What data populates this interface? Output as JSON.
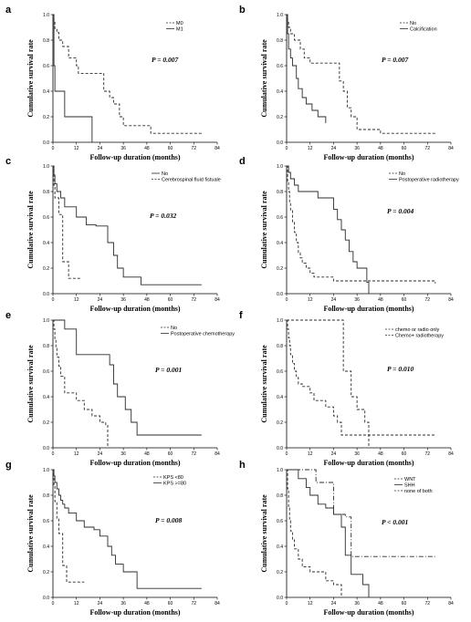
{
  "chart_data": [
    {
      "type": "line",
      "panel": "a",
      "ylabel": "Cumulative survival rate",
      "xlabel": "Follow-up duration (months)",
      "xlim": [
        0,
        84
      ],
      "ylim": [
        0,
        1.0
      ],
      "xticks": [
        "0",
        "12",
        "24",
        "36",
        "48",
        "60",
        "72",
        "84"
      ],
      "yticks": [
        "0.0",
        "0.2",
        "0.4",
        "0.6",
        "0.8",
        "1.0"
      ],
      "pvalue": "P = 0.007",
      "series": [
        {
          "name": "M0",
          "dash": "dash",
          "color": "#2b2b2b",
          "x": [
            0,
            0.5,
            1,
            2,
            3,
            5,
            8,
            12,
            13,
            24,
            26,
            29,
            31,
            34,
            36,
            50,
            76
          ],
          "y": [
            1,
            0.95,
            0.89,
            0.86,
            0.8,
            0.75,
            0.66,
            0.6,
            0.54,
            0.54,
            0.4,
            0.35,
            0.3,
            0.2,
            0.13,
            0.07,
            0.07
          ]
        },
        {
          "name": "M1",
          "dash": "solid",
          "color": "#2b2b2b",
          "x": [
            0,
            0.5,
            1,
            5,
            6,
            12,
            20
          ],
          "y": [
            1,
            0.6,
            0.4,
            0.4,
            0.2,
            0.2,
            0
          ]
        }
      ]
    },
    {
      "type": "line",
      "panel": "b",
      "ylabel": "Cumulative survival rate",
      "xlabel": "Follow-up duration (months)",
      "xlim": [
        0,
        84
      ],
      "ylim": [
        0,
        1.0
      ],
      "xticks": [
        "0",
        "12",
        "24",
        "36",
        "48",
        "60",
        "72",
        "84"
      ],
      "yticks": [
        "0.0",
        "0.2",
        "0.4",
        "0.6",
        "0.8",
        "1.0"
      ],
      "pvalue": "P = 0.007",
      "series": [
        {
          "name": "No",
          "dash": "dash",
          "color": "#2b2b2b",
          "x": [
            0,
            0.5,
            1,
            2,
            4,
            7,
            9,
            12,
            14,
            24,
            27,
            29,
            31,
            33,
            36,
            48,
            76
          ],
          "y": [
            1,
            0.95,
            0.9,
            0.85,
            0.8,
            0.73,
            0.66,
            0.62,
            0.62,
            0.62,
            0.48,
            0.4,
            0.27,
            0.2,
            0.1,
            0.07,
            0.07
          ]
        },
        {
          "name": "Calcification",
          "dash": "solid",
          "color": "#2b2b2b",
          "x": [
            0,
            0.5,
            1,
            2,
            3,
            5,
            6,
            8,
            10,
            13,
            16,
            20
          ],
          "y": [
            1,
            0.85,
            0.73,
            0.66,
            0.6,
            0.5,
            0.42,
            0.35,
            0.3,
            0.25,
            0.2,
            0.15
          ]
        }
      ]
    },
    {
      "type": "line",
      "panel": "c",
      "ylabel": "Cumulative survival rate",
      "xlabel": "Follow-up duration (months)",
      "xlim": [
        0,
        84
      ],
      "ylim": [
        0,
        1.0
      ],
      "xticks": [
        "0",
        "12",
        "24",
        "36",
        "48",
        "60",
        "72",
        "84"
      ],
      "yticks": [
        "0.0",
        "0.2",
        "0.4",
        "0.6",
        "0.8",
        "1.0"
      ],
      "pvalue": "P = 0.032",
      "series": [
        {
          "name": "No",
          "dash": "solid",
          "color": "#2b2b2b",
          "x": [
            0,
            0.5,
            1,
            2,
            4,
            6,
            12,
            17,
            22,
            28,
            31,
            33,
            36,
            45,
            76
          ],
          "y": [
            1,
            0.93,
            0.86,
            0.8,
            0.75,
            0.68,
            0.6,
            0.54,
            0.53,
            0.4,
            0.3,
            0.2,
            0.13,
            0.07,
            0.07
          ]
        },
        {
          "name": "Cerebrospinal fluid fistuale",
          "dash": "dash",
          "color": "#2b2b2b",
          "x": [
            0,
            0.5,
            1,
            3,
            5,
            8,
            14
          ],
          "y": [
            1,
            0.85,
            0.75,
            0.62,
            0.25,
            0.12,
            0.12
          ]
        }
      ]
    },
    {
      "type": "line",
      "panel": "d",
      "ylabel": "Cumulative survival rate",
      "xlabel": "Follow-up duration (months)",
      "xlim": [
        0,
        84
      ],
      "ylim": [
        0,
        1.0
      ],
      "xticks": [
        "0",
        "12",
        "24",
        "36",
        "48",
        "60",
        "72",
        "84"
      ],
      "yticks": [
        "0.0",
        "0.2",
        "0.4",
        "0.6",
        "0.8",
        "1.0"
      ],
      "pvalue": "P = 0.004",
      "series": [
        {
          "name": "No",
          "dash": "dash",
          "color": "#2b2b2b",
          "x": [
            0,
            0.5,
            1,
            1.5,
            2,
            3,
            4,
            5,
            6,
            7,
            8,
            10,
            12,
            14,
            24,
            76
          ],
          "y": [
            1,
            0.88,
            0.8,
            0.72,
            0.65,
            0.56,
            0.48,
            0.4,
            0.32,
            0.28,
            0.24,
            0.2,
            0.16,
            0.13,
            0.1,
            0.08
          ]
        },
        {
          "name": "Postoperative radiotherapy",
          "dash": "solid",
          "color": "#2b2b2b",
          "x": [
            0,
            1,
            2,
            4,
            6,
            12,
            16,
            20,
            24,
            26,
            28,
            30,
            32,
            34,
            36,
            41,
            42
          ],
          "y": [
            1,
            0.95,
            0.9,
            0.85,
            0.8,
            0.8,
            0.75,
            0.75,
            0.66,
            0.58,
            0.5,
            0.42,
            0.33,
            0.25,
            0.2,
            0.09,
            0
          ]
        }
      ]
    },
    {
      "type": "line",
      "panel": "e",
      "ylabel": "Cumulative survival rate",
      "xlabel": "Follow-up duration (months)",
      "xlim": [
        0,
        84
      ],
      "ylim": [
        0,
        1.0
      ],
      "xticks": [
        "0",
        "12",
        "24",
        "36",
        "48",
        "60",
        "72",
        "84"
      ],
      "yticks": [
        "0.0",
        "0.2",
        "0.4",
        "0.6",
        "0.8",
        "1.0"
      ],
      "pvalue": "P = 0.001",
      "series": [
        {
          "name": "No",
          "dash": "dash",
          "color": "#2b2b2b",
          "x": [
            0,
            0.5,
            1,
            1.5,
            2,
            3,
            4,
            6,
            12,
            14,
            16,
            20,
            22,
            24,
            27,
            28
          ],
          "y": [
            1,
            0.93,
            0.85,
            0.78,
            0.71,
            0.64,
            0.56,
            0.43,
            0.37,
            0.37,
            0.3,
            0.25,
            0.25,
            0.2,
            0.18,
            0
          ]
        },
        {
          "name": "Postoperative chemotherapy",
          "dash": "solid",
          "color": "#2b2b2b",
          "x": [
            0,
            6,
            12,
            24,
            29,
            31,
            33,
            37,
            40,
            43,
            76
          ],
          "y": [
            1,
            0.93,
            0.73,
            0.73,
            0.65,
            0.5,
            0.4,
            0.3,
            0.2,
            0.1,
            0.1
          ]
        }
      ]
    },
    {
      "type": "line",
      "panel": "f",
      "ylabel": "Cumulative survival rate",
      "xlabel": "Follow-up duration (months)",
      "xlim": [
        0,
        84
      ],
      "ylim": [
        0,
        1.0
      ],
      "xticks": [
        "0",
        "12",
        "24",
        "36",
        "48",
        "60",
        "72",
        "84"
      ],
      "yticks": [
        "0.0",
        "0.2",
        "0.4",
        "0.6",
        "0.8",
        "1.0"
      ],
      "pvalue": "P = 0.010",
      "series": [
        {
          "name": "chemo or radio only",
          "dash": "dash",
          "color": "#2b2b2b",
          "x": [
            0,
            0.5,
            1,
            1.5,
            2,
            3,
            4,
            5,
            6,
            8,
            12,
            14,
            20,
            24,
            26,
            28,
            76
          ],
          "y": [
            1,
            0.93,
            0.86,
            0.8,
            0.73,
            0.66,
            0.6,
            0.55,
            0.5,
            0.48,
            0.43,
            0.37,
            0.32,
            0.25,
            0.2,
            0.1,
            0.1
          ]
        },
        {
          "name": "Chemo+ radiotherapy",
          "dash": "dash",
          "color": "#2b2b2b",
          "x": [
            0,
            20,
            29,
            33,
            36,
            40,
            42
          ],
          "y": [
            1,
            1,
            0.6,
            0.4,
            0.3,
            0.2,
            0
          ]
        }
      ]
    },
    {
      "type": "line",
      "panel": "g",
      "ylabel": "Cumulative survival rate",
      "xlabel": "Follow-up duration (months)",
      "xlim": [
        0,
        84
      ],
      "ylim": [
        0,
        1.0
      ],
      "xticks": [
        "0",
        "12",
        "24",
        "36",
        "48",
        "60",
        "72",
        "84"
      ],
      "yticks": [
        "0.0",
        "0.2",
        "0.4",
        "0.6",
        "0.8",
        "1.0"
      ],
      "pvalue": "P = 0.008",
      "series": [
        {
          "name": "KPS <80",
          "dash": "dash",
          "color": "#2b2b2b",
          "x": [
            0,
            0.5,
            1,
            2,
            3,
            5,
            7,
            9,
            16
          ],
          "y": [
            1,
            0.88,
            0.75,
            0.62,
            0.5,
            0.25,
            0.12,
            0.12,
            0.12
          ]
        },
        {
          "name": "KPS >=80",
          "dash": "solid",
          "color": "#2b2b2b",
          "x": [
            0,
            0.5,
            1,
            2,
            3,
            4,
            5,
            6,
            8,
            12,
            16,
            21,
            24,
            28,
            30,
            32,
            36,
            43,
            76
          ],
          "y": [
            1,
            0.95,
            0.9,
            0.85,
            0.8,
            0.76,
            0.73,
            0.7,
            0.66,
            0.6,
            0.55,
            0.53,
            0.48,
            0.4,
            0.33,
            0.26,
            0.2,
            0.07,
            0.07
          ]
        }
      ]
    },
    {
      "type": "line",
      "panel": "h",
      "ylabel": "Cumulative survival rate",
      "xlabel": "Follow-up duration (months)",
      "xlim": [
        0,
        84
      ],
      "ylim": [
        0,
        1.0
      ],
      "xticks": [
        "0",
        "12",
        "24",
        "36",
        "48",
        "60",
        "72",
        "84"
      ],
      "yticks": [
        "0.0",
        "0.2",
        "0.4",
        "0.6",
        "0.8",
        "1.0"
      ],
      "pvalue": "P < 0.001",
      "series": [
        {
          "name": "WNT",
          "dash": "dashdot",
          "color": "#2b2b2b",
          "x": [
            0,
            12,
            15,
            24,
            30,
            33,
            76
          ],
          "y": [
            1,
            1,
            0.9,
            0.65,
            0.63,
            0.32,
            0.32
          ]
        },
        {
          "name": "SHH",
          "dash": "solid",
          "color": "#2b2b2b",
          "x": [
            0,
            3,
            6,
            10,
            12,
            16,
            20,
            24,
            28,
            30,
            33,
            36,
            39,
            42
          ],
          "y": [
            1,
            1,
            0.93,
            0.86,
            0.8,
            0.73,
            0.7,
            0.65,
            0.55,
            0.33,
            0.18,
            0.18,
            0.1,
            0
          ]
        },
        {
          "name": "none of both",
          "dash": "dash",
          "color": "#2b2b2b",
          "x": [
            0,
            0.5,
            1,
            1.5,
            2,
            3,
            4,
            6,
            8,
            12,
            20,
            24,
            28
          ],
          "y": [
            1,
            0.85,
            0.7,
            0.6,
            0.52,
            0.45,
            0.38,
            0.3,
            0.24,
            0.2,
            0.13,
            0.1,
            0
          ]
        }
      ]
    }
  ]
}
